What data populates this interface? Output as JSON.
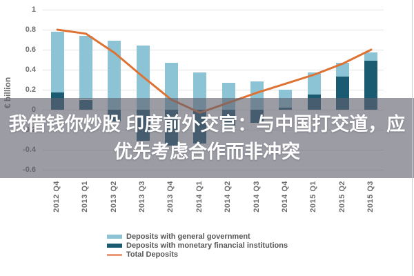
{
  "overlay": {
    "line1": "我借钱你炒股 印度前外交官：与中国打交道，应",
    "line2": "优先考虑合作而非冲突",
    "band_color": "#60606e",
    "text_color": "#ffffff"
  },
  "chart_data": {
    "type": "bar",
    "subtype": "stacked-bars-with-line-overlay",
    "title": "",
    "xlabel": "",
    "ylabel": "€ billion",
    "categories": [
      "2012 Q4",
      "2013 Q1",
      "2013 Q2",
      "2013 Q3",
      "2013 Q4",
      "2014 Q1",
      "2014 Q2",
      "2014 Q3",
      "2014 Q4",
      "2015 Q1",
      "2015 Q2",
      "2015 Q3"
    ],
    "series": [
      {
        "name": "Deposits with general government",
        "type": "bar",
        "color": "#8CC4D6",
        "values": [
          0.61,
          0.64,
          0.69,
          0.64,
          0.47,
          0.37,
          0.27,
          0.28,
          0.18,
          0.22,
          0.14,
          0.08
        ]
      },
      {
        "name": "Deposits with monetary financial institutions",
        "type": "bar",
        "color": "#1B5B72",
        "values": [
          0.17,
          0.1,
          -0.12,
          -0.31,
          -0.36,
          -0.34,
          -0.18,
          -0.13,
          0.02,
          0.15,
          0.33,
          0.49
        ]
      },
      {
        "name": "Total Deposits",
        "type": "line",
        "color": "#DE7233",
        "legend_color": "#E99C77",
        "values": [
          0.8,
          0.76,
          0.57,
          0.33,
          0.1,
          -0.03,
          0.07,
          0.17,
          0.26,
          0.35,
          0.46,
          0.6
        ]
      }
    ],
    "yticks": [
      1,
      0.8,
      0.6,
      0.4,
      0.2,
      0,
      -0.2,
      -0.4,
      -0.6
    ],
    "ylim": [
      -0.7,
      1.05
    ],
    "grid": true,
    "legend_position": "bottom-left",
    "tick_label_color": "#6e6e6e"
  }
}
